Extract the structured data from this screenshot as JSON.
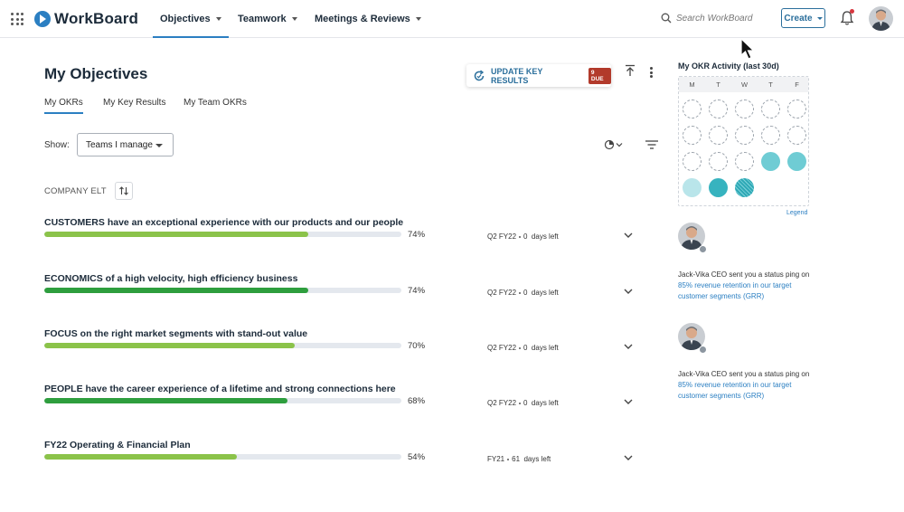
{
  "header": {
    "brand": "WorkBoard",
    "nav": [
      {
        "label": "Objectives",
        "active": true
      },
      {
        "label": "Teamwork",
        "active": false
      },
      {
        "label": "Meetings & Reviews",
        "active": false
      }
    ],
    "search_placeholder": "Search WorkBoard",
    "create_label": "Create",
    "icons": {
      "apps": "grid-icon",
      "search": "search-icon",
      "notifications": "bell-icon",
      "profile": "user-avatar"
    }
  },
  "page": {
    "title": "My Objectives",
    "update_button": "UPDATE KEY RESULTS",
    "due_badge": "9 DUE",
    "tabs": [
      {
        "label": "My OKRs",
        "active": true
      },
      {
        "label": "My Key Results",
        "active": false
      },
      {
        "label": "My Team OKRs",
        "active": false
      }
    ],
    "show_label": "Show:",
    "show_value": "Teams I manage",
    "section_label": "COMPANY ELT"
  },
  "objectives": [
    {
      "title": "CUSTOMERS have an exceptional experience with our products and our people",
      "progress": 74,
      "progress_label": "74%",
      "period": "Q2 FY22",
      "days": "0",
      "days_label": "days left",
      "color": "#8bc34a"
    },
    {
      "title": "ECONOMICS of a high velocity, high efficiency business",
      "progress": 74,
      "progress_label": "74%",
      "period": "Q2 FY22",
      "days": "0",
      "days_label": "days left",
      "color": "#2e9e3e"
    },
    {
      "title": "FOCUS on the right market segments with stand-out value",
      "progress": 70,
      "progress_label": "70%",
      "period": "Q2 FY22",
      "days": "0",
      "days_label": "days left",
      "color": "#8bc34a"
    },
    {
      "title": "PEOPLE have the career experience of a lifetime and strong connections here",
      "progress": 68,
      "progress_label": "68%",
      "period": "Q2 FY22",
      "days": "0",
      "days_label": "days left",
      "color": "#2e9e3e"
    },
    {
      "title": "FY22 Operating & Financial Plan",
      "progress": 54,
      "progress_label": "54%",
      "period": "FY21",
      "days": "61",
      "days_label": "days left",
      "color": "#8bc34a"
    }
  ],
  "activity": {
    "title": "My OKR Activity (last 30d)",
    "days": [
      "M",
      "T",
      "W",
      "T",
      "F"
    ],
    "cells": [
      "empty",
      "empty",
      "empty",
      "empty",
      "empty",
      "empty",
      "empty",
      "empty",
      "empty",
      "empty",
      "empty",
      "empty",
      "empty",
      "c1",
      "c1",
      "c2",
      "c3",
      "c4"
    ],
    "legend": "Legend",
    "colors": {
      "empty": "#ffffff",
      "c1": "#6fccd4",
      "c2": "#b9e5ea",
      "c3": "#37b3bf",
      "c4": "#2fa9b6"
    }
  },
  "feed": [
    {
      "prefix": "Jack-Vika CEO sent you a status ping on",
      "link": "85% revenue retention in our target customer segments (GRR)"
    },
    {
      "prefix": "Jack-Vika CEO sent you a status ping on",
      "link": "85% revenue retention in our target customer segments (GRR)"
    }
  ]
}
